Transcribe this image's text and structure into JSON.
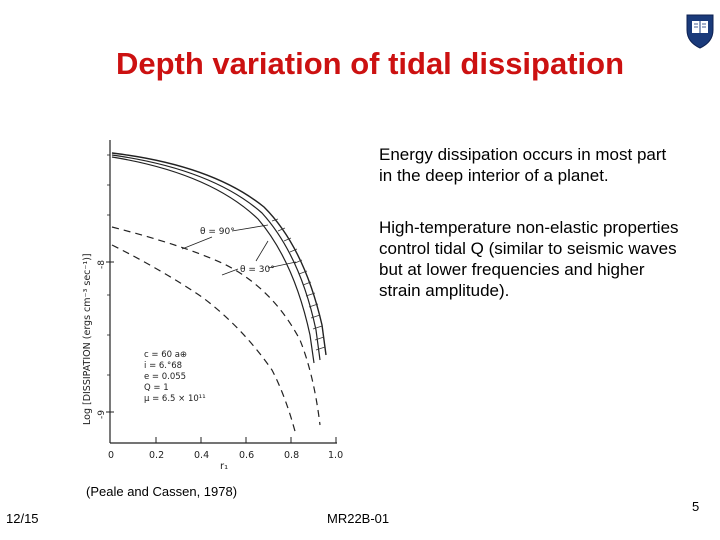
{
  "slide": {
    "title": "Depth variation of tidal dissipation",
    "bullets": [
      "Energy dissipation occurs in most part in the deep interior of a planet.",
      "High-temperature non-elastic properties control tidal Q (similar to seismic waves but at lower frequencies and higher strain amplitude)."
    ],
    "citation": "(Peale and Cassen, 1978)",
    "footer_date": "12/15",
    "footer_code": "MR22B-01",
    "page_number": "5"
  },
  "figure": {
    "y_axis_label": "Log [DISSIPATION (ergs cm⁻³ sec⁻¹)]",
    "x_axis_label": "r₁",
    "x_ticks": [
      "0",
      "0.2",
      "0.4",
      "0.6",
      "0.8",
      "1.0"
    ],
    "y_ticks": [
      "-8",
      "-9"
    ],
    "annotation_90": "θ = 90°",
    "annotation_30": "θ = 30°",
    "parameters": [
      "c = 60 a⊕",
      "i = 6.°68",
      "e = 0.055",
      "Q = 1",
      "μ = 6.5 × 10¹¹"
    ]
  },
  "colors": {
    "title": "#cc1111",
    "logo": "#1a3a7a"
  },
  "icons": {
    "logo": "university-crest-icon"
  }
}
